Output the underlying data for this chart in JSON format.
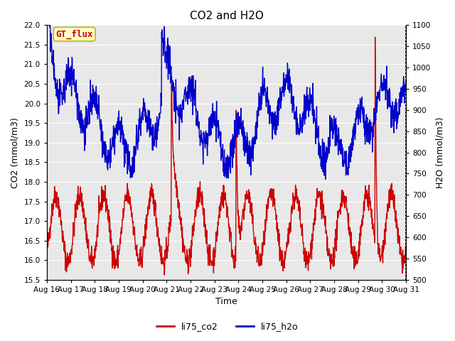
{
  "title": "CO2 and H2O",
  "xlabel": "Time",
  "ylabel_left": "CO2 (mmol/m3)",
  "ylabel_right": "H2O (mmol/m3)",
  "ylim_left": [
    15.5,
    22.0
  ],
  "ylim_right": [
    500,
    1100
  ],
  "yticks_left": [
    15.5,
    16.0,
    16.5,
    17.0,
    17.5,
    18.0,
    18.5,
    19.0,
    19.5,
    20.0,
    20.5,
    21.0,
    21.5,
    22.0
  ],
  "yticks_right": [
    500,
    550,
    600,
    650,
    700,
    750,
    800,
    850,
    900,
    950,
    1000,
    1050,
    1100
  ],
  "xtick_labels": [
    "Aug 16",
    "Aug 17",
    "Aug 18",
    "Aug 19",
    "Aug 20",
    "Aug 21",
    "Aug 22",
    "Aug 23",
    "Aug 24",
    "Aug 25",
    "Aug 26",
    "Aug 27",
    "Aug 28",
    "Aug 29",
    "Aug 30",
    "Aug 31"
  ],
  "color_co2": "#cc0000",
  "color_h2o": "#0000cc",
  "label_co2": "li75_co2",
  "label_h2o": "li75_h2o",
  "annotation_text": "GT_flux",
  "annotation_color": "#cc0000",
  "annotation_bg": "#ffffcc",
  "annotation_border": "#bbbb00",
  "axes_bg": "#e8e8e8",
  "grid_color": "#ffffff",
  "title_fontsize": 11,
  "axis_label_fontsize": 9,
  "tick_fontsize": 7.5,
  "legend_fontsize": 9,
  "line_width": 1.0
}
